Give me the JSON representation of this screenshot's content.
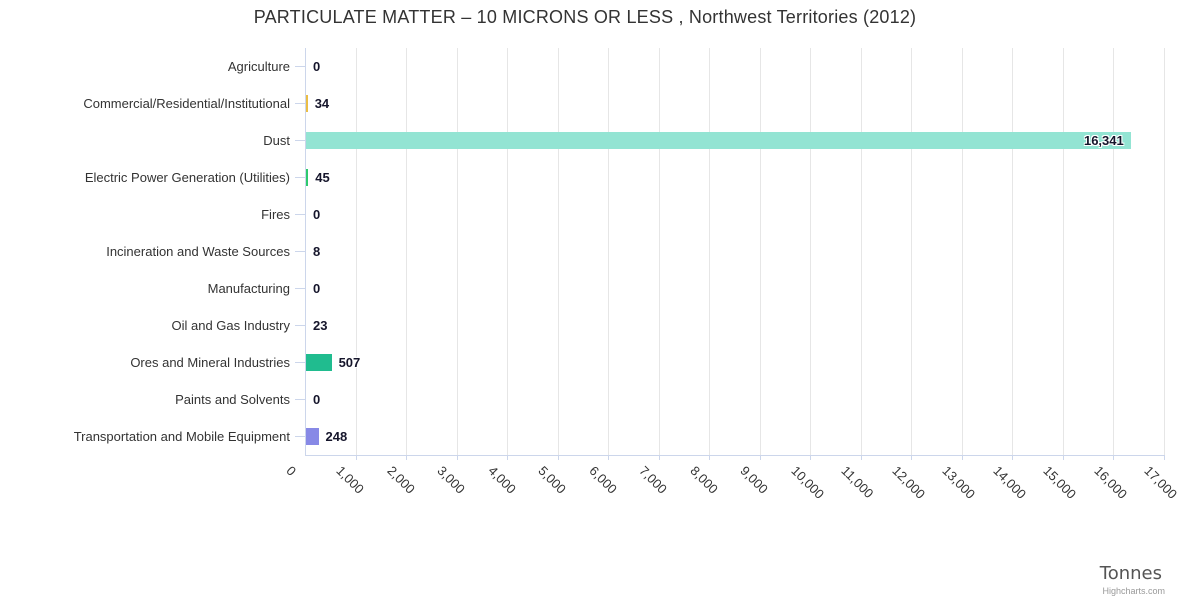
{
  "title": "PARTICULATE MATTER – 10 MICRONS OR LESS , Northwest Territories (2012)",
  "chart_data": {
    "type": "bar",
    "orientation": "horizontal",
    "categories": [
      "Agriculture",
      "Commercial/Residential/Institutional",
      "Dust",
      "Electric Power Generation (Utilities)",
      "Fires",
      "Incineration and Waste Sources",
      "Manufacturing",
      "Oil and Gas Industry",
      "Ores and Mineral Industries",
      "Paints and Solvents",
      "Transportation and Mobile Equipment"
    ],
    "values": [
      0,
      34,
      16341,
      45,
      0,
      8,
      0,
      23,
      507,
      0,
      248
    ],
    "value_labels": [
      "0",
      "34",
      "16,341",
      "45",
      "0",
      "8",
      "0",
      "23",
      "507",
      "0",
      "248"
    ],
    "bar_colors": [
      null,
      "#eabd45",
      "#93e4d3",
      "#2dc96e",
      null,
      null,
      null,
      null,
      "#20bc8f",
      null,
      "#8789e6"
    ],
    "xlabel": "Tonnes",
    "xlim": [
      0,
      17000
    ],
    "x_ticks": [
      "0",
      "1,000",
      "2,000",
      "3,000",
      "4,000",
      "5,000",
      "6,000",
      "7,000",
      "8,000",
      "9,000",
      "10,000",
      "11,000",
      "12,000",
      "13,000",
      "14,000",
      "15,000",
      "16,000",
      "17,000"
    ],
    "grid": true,
    "legend": false,
    "credit": "Highcharts.com"
  },
  "colors": {
    "background": "#ffffff",
    "axis_line": "#ccd6eb",
    "gridline": "#e6e6e6",
    "title": "#333333",
    "axis_label": "#333333",
    "value_label": "#15152b",
    "axis_title": "#555555",
    "credit": "#999999"
  }
}
